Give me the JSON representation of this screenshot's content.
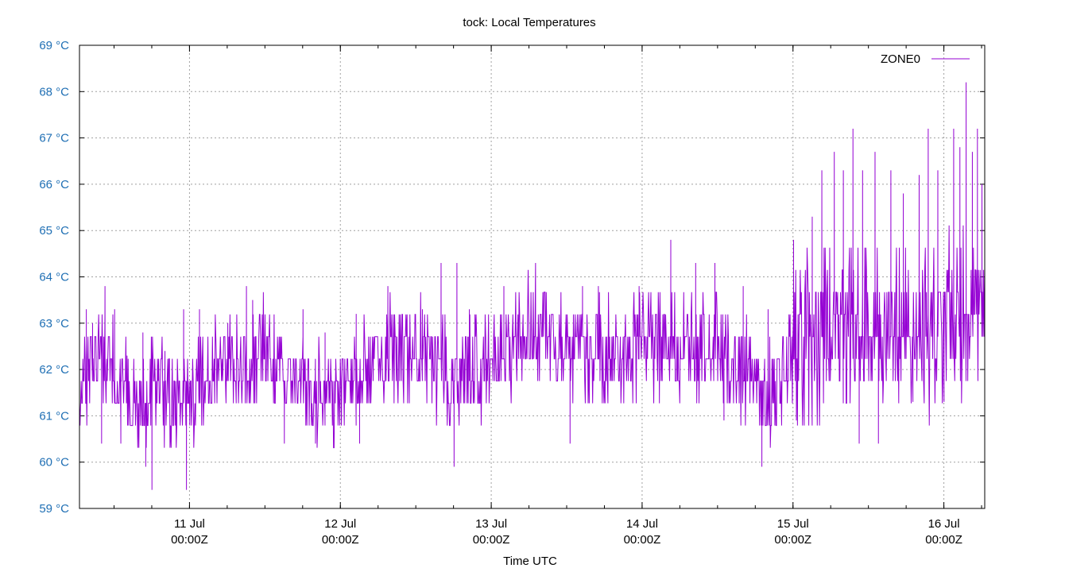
{
  "chart_data": {
    "type": "line",
    "title": "tock: Local Temperatures",
    "xlabel": "Time UTC",
    "ylabel": "",
    "ylim": [
      59,
      69
    ],
    "xlim_hours_from_11_Jul": [
      -17.5,
      126.5
    ],
    "yticks": [
      {
        "value": 59,
        "label": "59 °C"
      },
      {
        "value": 60,
        "label": "60 °C"
      },
      {
        "value": 61,
        "label": "61 °C"
      },
      {
        "value": 62,
        "label": "62 °C"
      },
      {
        "value": 63,
        "label": "63 °C"
      },
      {
        "value": 64,
        "label": "64 °C"
      },
      {
        "value": 65,
        "label": "65 °C"
      },
      {
        "value": 66,
        "label": "66 °C"
      },
      {
        "value": 67,
        "label": "67 °C"
      },
      {
        "value": 68,
        "label": "68 °C"
      },
      {
        "value": 69,
        "label": "69 °C"
      }
    ],
    "xticks": [
      {
        "hours": 0,
        "line1": "11 Jul",
        "line2": "00:00Z"
      },
      {
        "hours": 24,
        "line1": "12 Jul",
        "line2": "00:00Z"
      },
      {
        "hours": 48,
        "line1": "13 Jul",
        "line2": "00:00Z"
      },
      {
        "hours": 72,
        "line1": "14 Jul",
        "line2": "00:00Z"
      },
      {
        "hours": 96,
        "line1": "15 Jul",
        "line2": "00:00Z"
      },
      {
        "hours": 120,
        "line1": "16 Jul",
        "line2": "00:00Z"
      }
    ],
    "grid": true,
    "legend_position": "top-right",
    "series": [
      {
        "name": "ZONE0",
        "color": "#9400d3",
        "x_hours": [
          -17.5,
          -14,
          -11,
          -8,
          -5,
          -2,
          0,
          3,
          6,
          9,
          12,
          15,
          18,
          21,
          24,
          27,
          30,
          33,
          36,
          39,
          42,
          45,
          48,
          51,
          54,
          57,
          60,
          63,
          66,
          69,
          72,
          75,
          78,
          81,
          84,
          87,
          90,
          93,
          96,
          99,
          102,
          105,
          108,
          111,
          114,
          117,
          120,
          123,
          126.5
        ],
        "y": [
          61.6,
          62.4,
          61.7,
          61.3,
          61.6,
          61.4,
          61.3,
          61.9,
          62.2,
          62.3,
          62.7,
          61.9,
          61.6,
          61.4,
          61.7,
          61.9,
          62.3,
          62.6,
          62.4,
          62.1,
          61.8,
          61.9,
          62.2,
          62.6,
          62.8,
          62.9,
          62.6,
          62.5,
          62.4,
          62.3,
          62.6,
          62.5,
          62.3,
          62.4,
          62.5,
          62.2,
          61.6,
          61.5,
          62.3,
          62.7,
          63.0,
          63.1,
          62.8,
          62.7,
          62.9,
          62.8,
          62.9,
          63.2,
          63.5
        ],
        "spikes_x_hours": [
          -16.5,
          -15.5,
          -13.5,
          -12,
          -10,
          -7.5,
          -4,
          -1,
          1.5,
          6,
          9,
          10,
          18,
          21.5,
          26.5,
          31.5,
          37,
          40,
          42.5,
          44.5,
          50,
          55,
          62.5,
          65,
          71.5,
          76.5,
          80.5,
          83.5,
          88,
          92,
          96,
          99,
          100.5,
          102.5,
          104,
          105.5,
          107,
          109,
          111.5,
          113.5,
          116,
          117.5,
          119,
          121.5,
          122.5,
          123.5,
          124.5,
          125.3,
          126
        ],
        "spikes_y": [
          63.3,
          63.0,
          63.8,
          63.3,
          62.3,
          62.8,
          62.4,
          63.3,
          63.3,
          63.0,
          63.8,
          63.5,
          63.3,
          62.8,
          63.2,
          63.8,
          63.3,
          64.3,
          64.3,
          63.3,
          63.8,
          64.3,
          63.8,
          63.8,
          63.8,
          64.8,
          64.3,
          64.3,
          63.8,
          63.3,
          64.8,
          65.3,
          66.3,
          66.7,
          66.3,
          67.2,
          66.3,
          66.7,
          66.3,
          65.8,
          66.2,
          67.2,
          66.3,
          67.2,
          66.8,
          68.2,
          66.7,
          67.2,
          66.0
        ],
        "dips_x_hours": [
          -14,
          -11,
          -7,
          -6,
          -0.5,
          15,
          20,
          27,
          42,
          60.5,
          85,
          91,
          96.5,
          106.5,
          109.5,
          115,
          120
        ],
        "dips_y": [
          60.4,
          60.4,
          59.9,
          59.4,
          59.4,
          60.4,
          60.4,
          60.4,
          59.9,
          60.4,
          60.9,
          59.9,
          60.9,
          60.4,
          60.4,
          61.3,
          61.3
        ]
      }
    ]
  }
}
